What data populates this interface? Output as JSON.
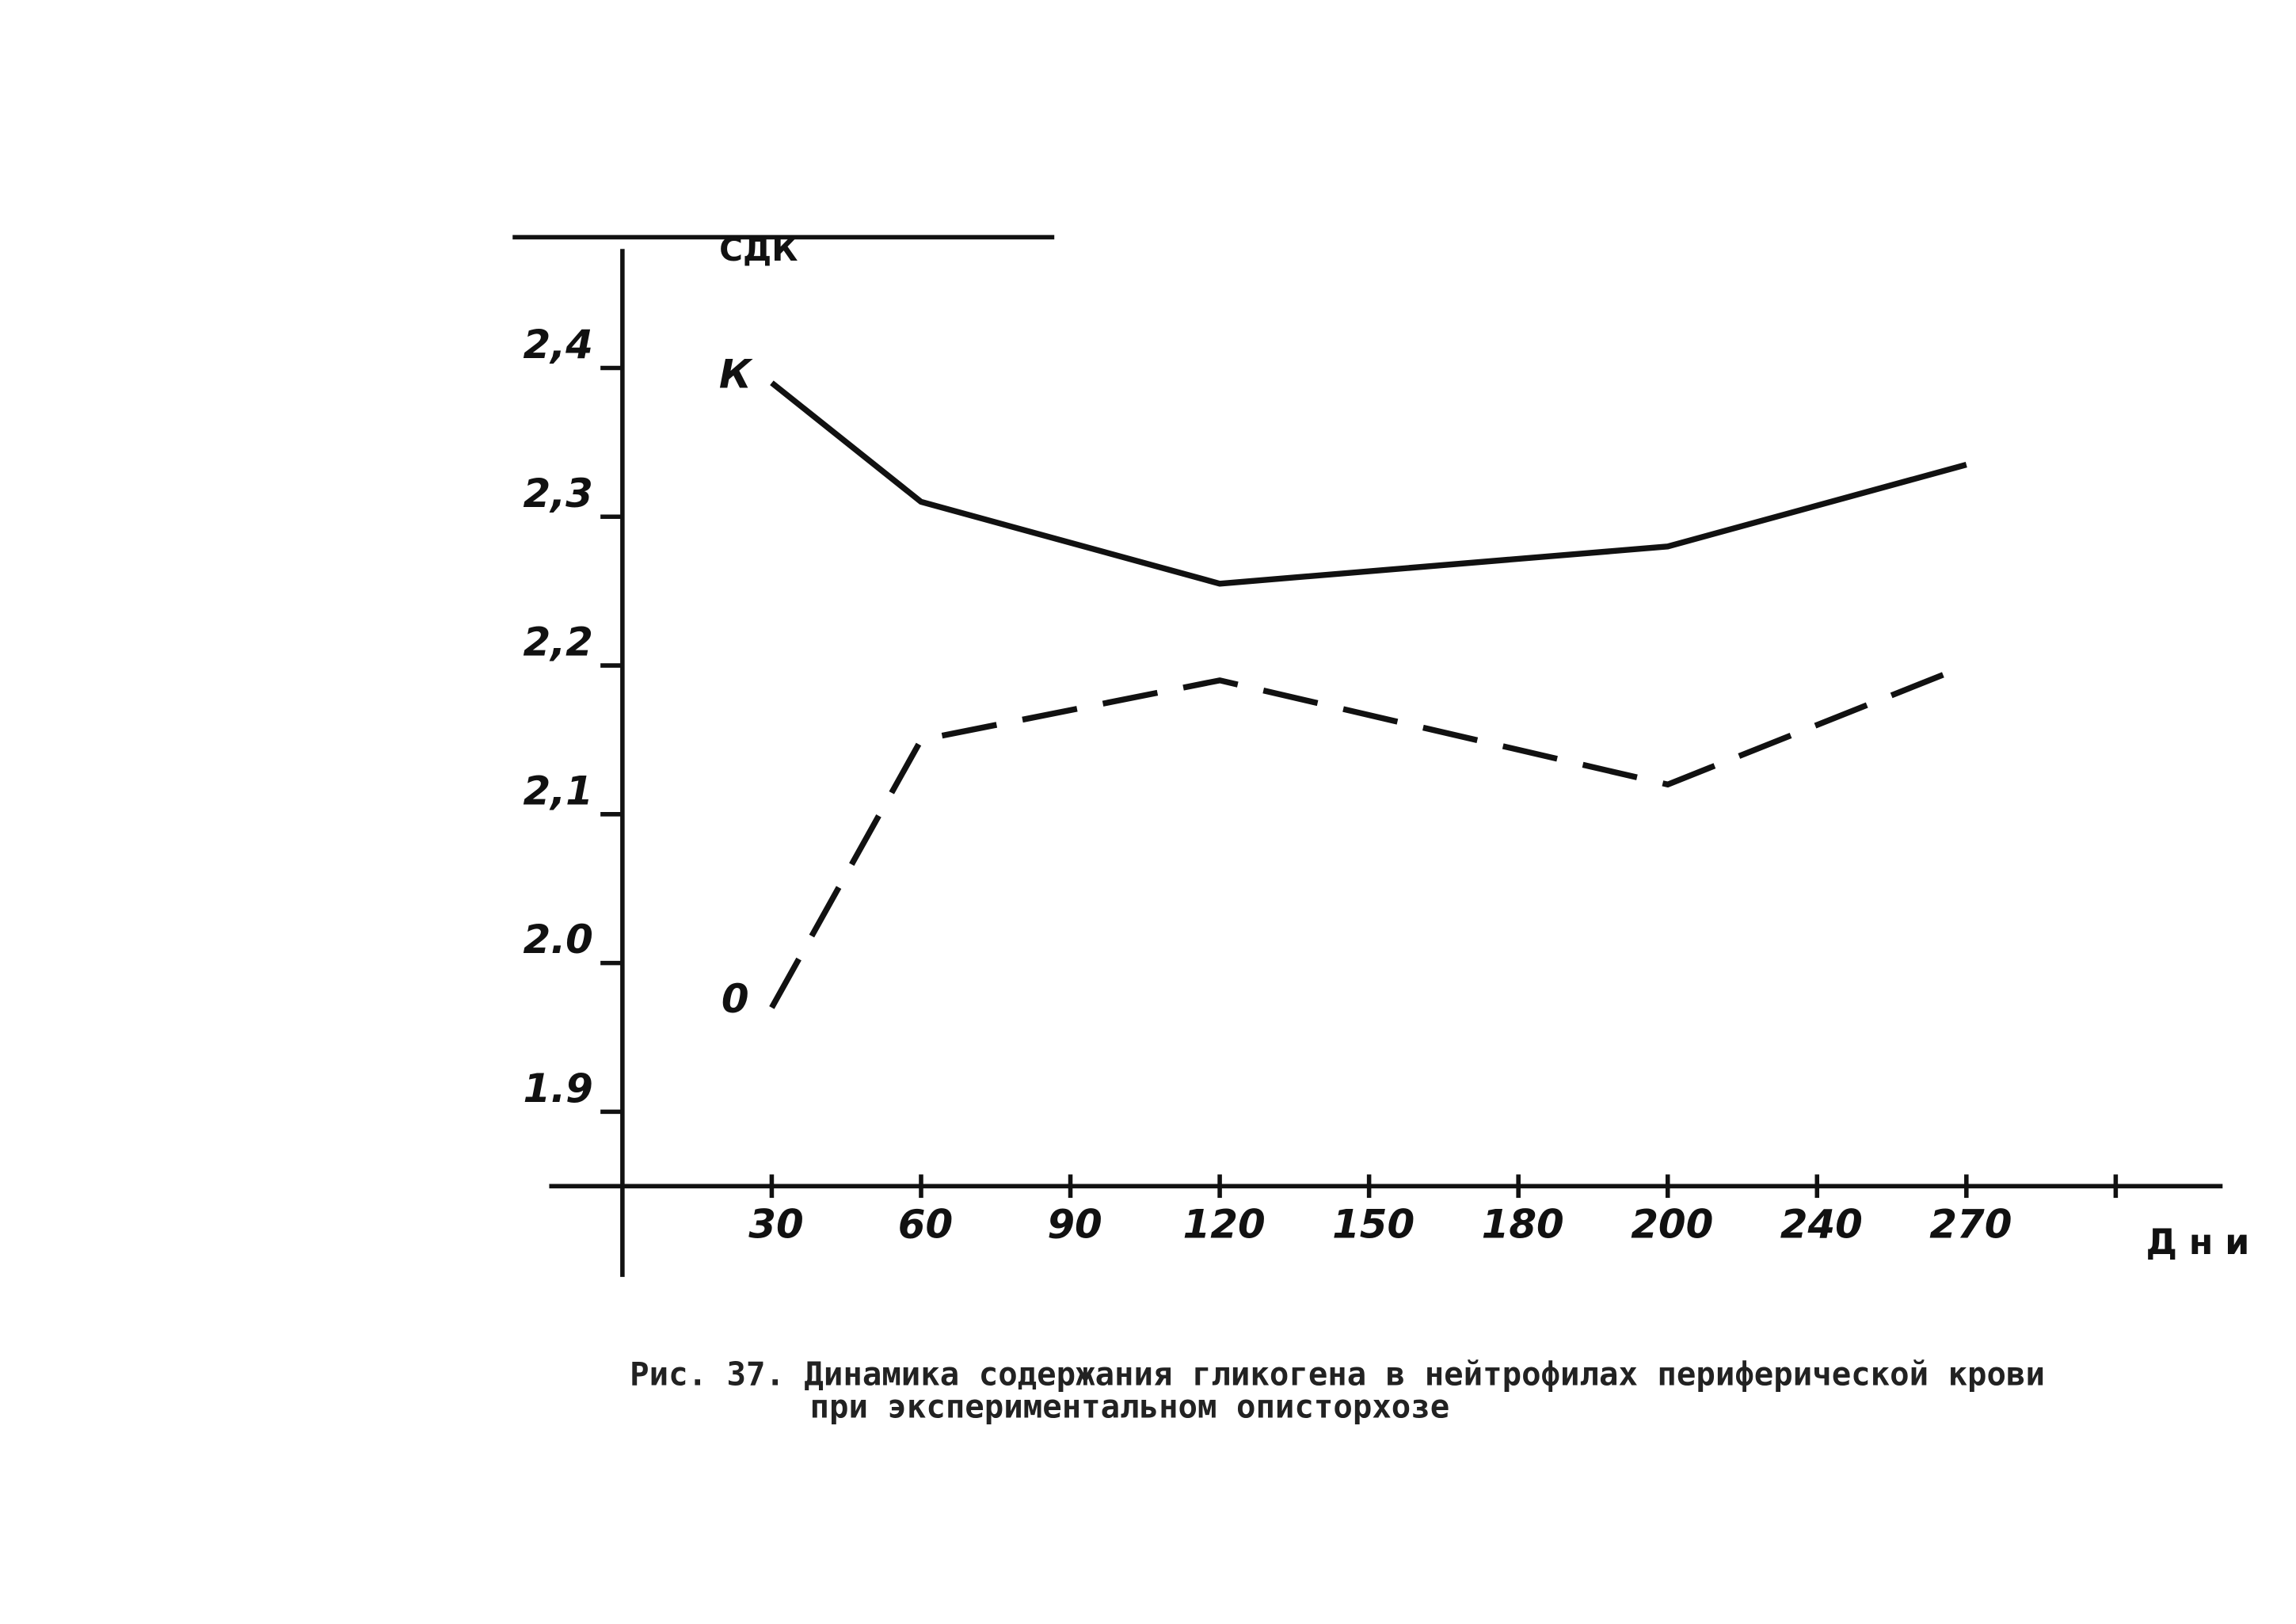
{
  "chart_data": {
    "type": "line",
    "y_label": "СДК",
    "x_label": "Дни",
    "caption": [
      "Рис. 37. Динамика содержания гликогена в нейтрофилах периферической крови",
      "при экспериментальном описторхозе"
    ],
    "categories": [
      "30",
      "60",
      "90",
      "120",
      "150",
      "180",
      "200",
      "240",
      "270",
      null
    ],
    "ylim": [
      1.85,
      2.48
    ],
    "yticks": [
      1.9,
      {
        "value": 2,
        "label": "2.0"
      },
      {
        "value": 2.1,
        "label": "2,1"
      },
      {
        "value": 2.2,
        "label": "2,2"
      },
      {
        "value": 2.3,
        "label": "2,3"
      },
      {
        "value": 2.4,
        "label": "2,4"
      }
    ],
    "series": [
      {
        "name": "К",
        "color": "#111111",
        "dash": false,
        "x": [
          "30",
          "60",
          "120",
          "200",
          "270"
        ],
        "values": [
          2.39,
          2.31,
          2.255,
          2.28,
          2.335
        ]
      },
      {
        "name": "0",
        "color": "#111111",
        "dash": true,
        "x": [
          "30",
          "60",
          "120",
          "200",
          "270"
        ],
        "values": [
          1.97,
          2.15,
          2.19,
          2.12,
          2.2
        ]
      }
    ]
  }
}
